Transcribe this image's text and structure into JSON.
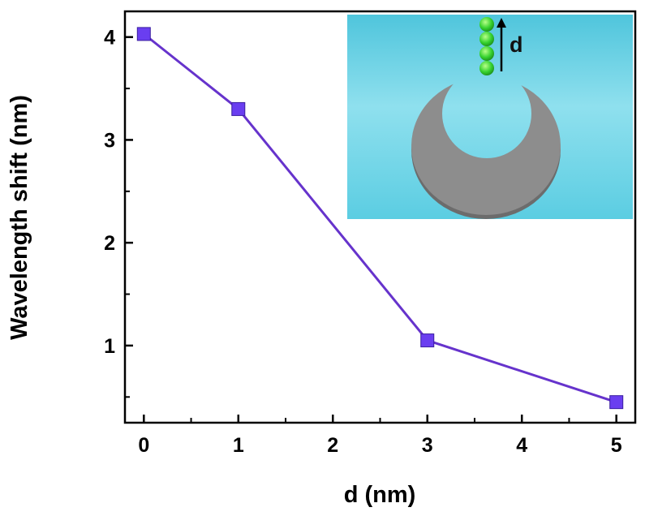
{
  "chart_data": {
    "type": "line",
    "xlabel": "d (nm)",
    "ylabel": "Wavelength shift (nm)",
    "xlim": [
      -0.2,
      5.2
    ],
    "ylim": [
      0.25,
      4.25
    ],
    "x_ticks": [
      0,
      1,
      2,
      3,
      4,
      5
    ],
    "y_ticks": [
      1,
      2,
      3,
      4
    ],
    "grid": false,
    "series": [
      {
        "x": [
          0,
          1,
          3,
          5
        ],
        "y": [
          4.03,
          3.3,
          1.05,
          0.45
        ],
        "color": "#6633cc",
        "marker": "square",
        "marker_color": "#6a3ef0"
      }
    ],
    "inset": {
      "description_label": "d",
      "background_color": "#62cfe3",
      "ring_color": "#8a8a8a",
      "bead_color": "#35d12e"
    }
  }
}
